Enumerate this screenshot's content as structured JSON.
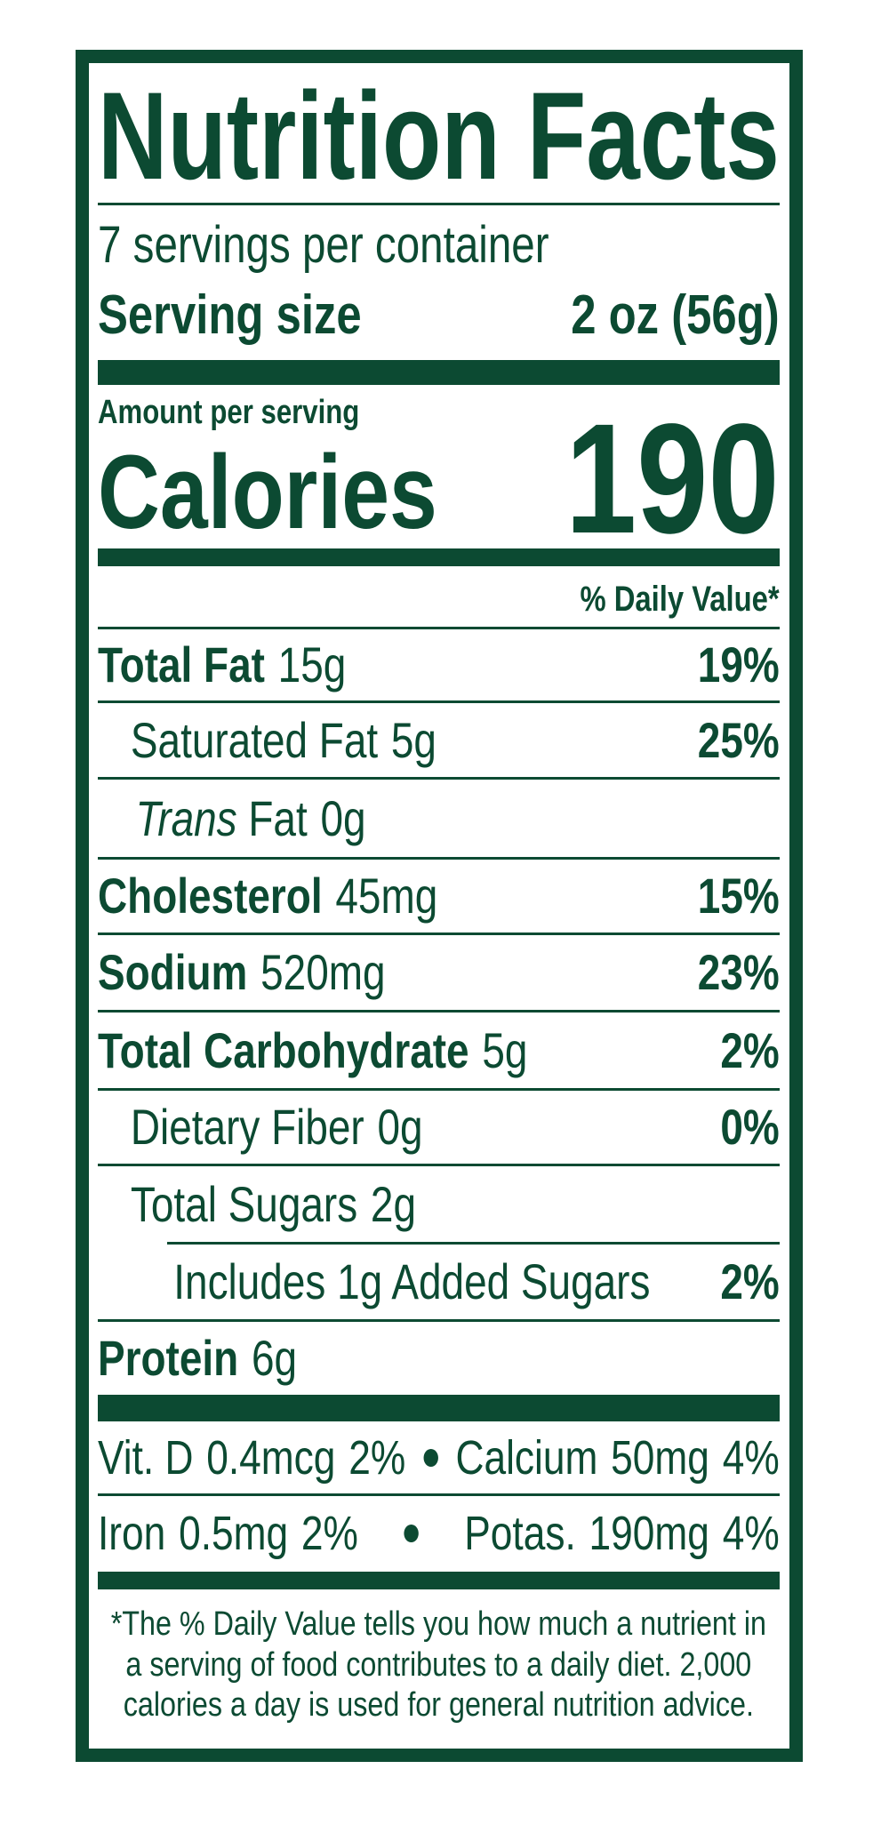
{
  "header": {
    "title": "Nutrition Facts",
    "servings": "7 servings per container",
    "serving_size_label": "Serving size",
    "serving_size_value": "2 oz (56g)"
  },
  "calories": {
    "amount_label": "Amount per serving",
    "label": "Calories",
    "value": "190"
  },
  "dv_header": "% Daily Value*",
  "nutrients": [
    {
      "name": "Total Fat",
      "amount": "15g",
      "dv": "19%"
    },
    {
      "name": "Saturated Fat",
      "amount": "5g",
      "dv": "25%"
    },
    {
      "name": [
        "Trans",
        "Fat"
      ],
      "amount": "0g"
    },
    {
      "name": "Cholesterol",
      "amount": "45mg",
      "dv": "15%"
    },
    {
      "name": "Sodium",
      "amount": "520mg",
      "dv": "23%"
    },
    {
      "name": "Total Carbohydrate",
      "amount": "5g",
      "dv": "2%"
    },
    {
      "name": "Dietary Fiber",
      "amount": "0g",
      "dv": "0%"
    },
    {
      "name": "Total Sugars",
      "amount": "2g"
    },
    {
      "name": "Includes 1g Added Sugars",
      "dv": "2%"
    },
    {
      "name": "Protein",
      "amount": "6g"
    }
  ],
  "micronutrients": [
    {
      "name": "Vit. D",
      "amount": "0.4mcg",
      "dv": "2%"
    },
    {
      "name": "Calcium",
      "amount": "50mg",
      "dv": "4%"
    },
    {
      "name": "Iron",
      "amount": "0.5mg",
      "dv": "2%"
    },
    {
      "name": "Potas.",
      "amount": "190mg",
      "dv": "4%"
    }
  ],
  "footnote": [
    "*The % Daily Value tells you how much a nutrient in",
    "a serving of food contributes to a daily diet. 2,000",
    "calories a day is used for general nutrition advice."
  ]
}
